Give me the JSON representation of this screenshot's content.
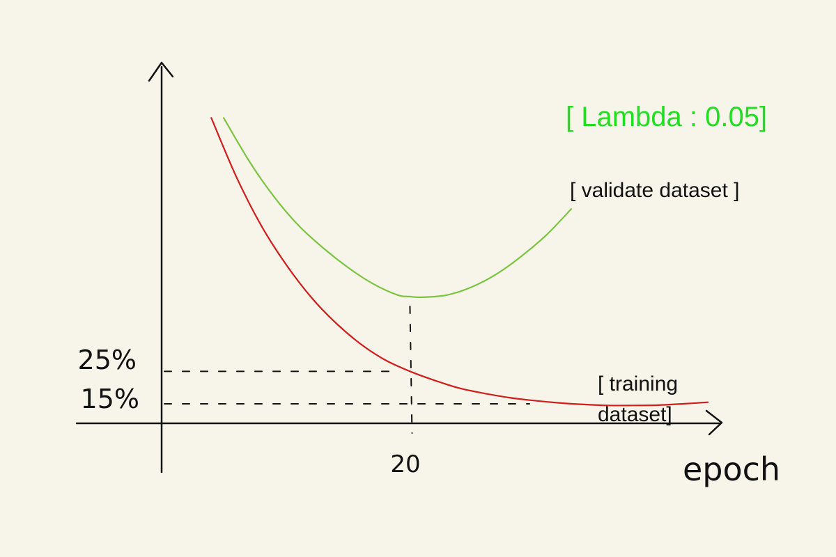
{
  "colors": {
    "background": "#f7f5e9",
    "axis": "#111111",
    "training": "#d21d1d",
    "validate": "#7bc441",
    "lambda": "#22dd22"
  },
  "chart_data": {
    "type": "line",
    "title": "[ Lambda : 0.05]",
    "xlabel": "epoch",
    "ylabel": "",
    "x_ticks": [
      "20"
    ],
    "y_ticks": [
      "25%",
      "15%"
    ],
    "xlim": [
      0,
      45
    ],
    "ylim": [
      9,
      120
    ],
    "grid": false,
    "reference_lines": [
      {
        "type": "vertical",
        "x": 20,
        "style": "dashed"
      },
      {
        "type": "horizontal",
        "y": 25,
        "style": "dashed"
      },
      {
        "type": "horizontal",
        "y": 15,
        "style": "dashed"
      }
    ],
    "series": [
      {
        "name": "[ training dataset]",
        "color": "#d21d1d",
        "x": [
          4,
          6,
          8,
          10,
          12,
          14,
          16,
          18,
          20,
          22,
          24,
          26,
          28,
          30,
          32,
          34,
          36,
          38,
          40,
          42,
          44
        ],
        "y": [
          103,
          85,
          70,
          58,
          48,
          40,
          33.5,
          28.5,
          25,
          22.2,
          19.8,
          18.2,
          16.9,
          16,
          15.3,
          14.8,
          14.5,
          14.5,
          14.6,
          15,
          15.5
        ]
      },
      {
        "name": "[ validate dataset ]",
        "color": "#7bc441",
        "x": [
          5,
          7,
          9,
          11,
          13,
          15,
          17,
          19,
          20,
          21,
          23,
          25,
          27,
          29,
          31,
          33
        ],
        "y": [
          103,
          90,
          79,
          70,
          63,
          57,
          52,
          48.5,
          48,
          47.8,
          48.5,
          51,
          55,
          60.5,
          67,
          75
        ]
      }
    ]
  }
}
